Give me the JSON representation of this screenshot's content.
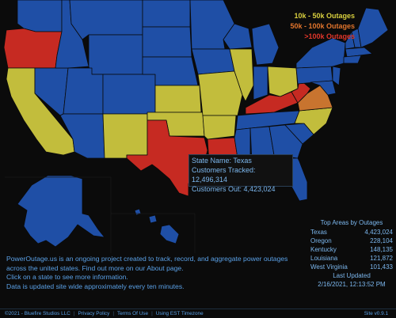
{
  "legend": {
    "items": [
      {
        "label": "10k - 50k Outages",
        "color": "#d8cf3e"
      },
      {
        "label": "50k - 100k Outages",
        "color": "#e0742c"
      },
      {
        "label": ">100k Outages",
        "color": "#e0362a"
      }
    ]
  },
  "colors": {
    "normal": "#1f4fa6",
    "tier1": "#c2bd3c",
    "tier2": "#c8742f",
    "tier3": "#c62a22",
    "borders": "#0a0a0a"
  },
  "tooltip": {
    "state_name": "State Name: Texas",
    "customers_tracked": "Customers Tracked: 12,496,314",
    "customers_out": "Customers Out: 4,423,024"
  },
  "top_areas": {
    "title": "Top Areas by Outages",
    "rows": [
      {
        "name": "Texas",
        "value": "4,423,024"
      },
      {
        "name": "Oregon",
        "value": "228,104"
      },
      {
        "name": "Kentucky",
        "value": "148,135"
      },
      {
        "name": "Louisiana",
        "value": "121,872"
      },
      {
        "name": "West Virginia",
        "value": "101,433"
      }
    ],
    "last_updated_label": "Last Updated",
    "last_updated_value": "2/16/2021, 12:13:52 PM"
  },
  "info": {
    "line1": "PowerOutage.us is an ongoing project created to track, record, and aggregate power outages",
    "line2": "across the united states. Find out more on our About page.",
    "line3": "Click on a state to see more information.",
    "line4": "Data is updated site wide approximately every ten minutes."
  },
  "footer": {
    "copyright": "©2021 - Bluefire Studios LLC",
    "privacy": "Privacy Policy",
    "terms": "Terms Of Use",
    "timezone": "Using EST Timezone",
    "version": "Site v0.9.1"
  }
}
